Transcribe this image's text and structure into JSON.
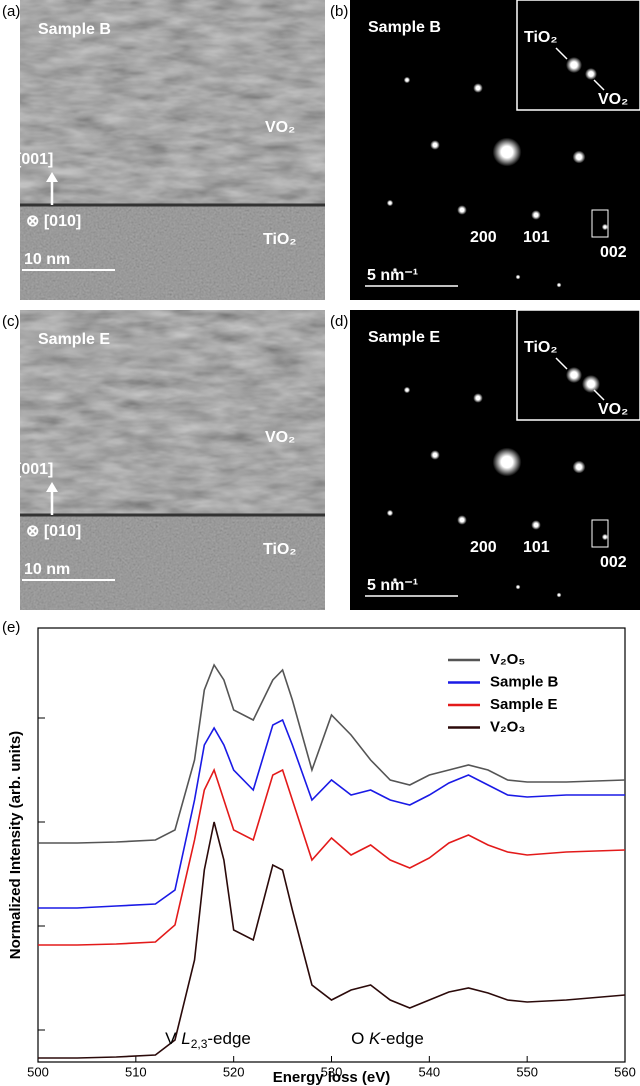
{
  "panels": [
    {
      "label": "(a)",
      "sample": "Sample B",
      "film": "VO₂",
      "direction": "[001]",
      "zone": "⊗ [010]",
      "substrate": "TiO₂",
      "scale": "10 nm"
    },
    {
      "label": "(b)",
      "sample": "Sample B",
      "inset": [
        "TiO₂",
        "VO₂"
      ],
      "spots": [
        "200",
        "101",
        "002"
      ],
      "scale": "5 nm⁻¹"
    },
    {
      "label": "(c)",
      "sample": "Sample E",
      "film": "VO₂",
      "direction": "[001]",
      "zone": "⊗ [010]",
      "substrate": "TiO₂",
      "scale": "10 nm"
    },
    {
      "label": "(d)",
      "sample": "Sample E",
      "inset": [
        "TiO₂",
        "VO₂"
      ],
      "spots": [
        "200",
        "101",
        "002"
      ],
      "scale": "5 nm⁻¹"
    }
  ],
  "chart_data": {
    "type": "line",
    "label": "(e)",
    "xlabel": "Energy loss (eV)",
    "ylabel": "Normalized Intensity (arb. units)",
    "x": [
      500,
      504,
      508,
      512,
      514,
      516,
      517,
      518,
      519,
      520,
      522,
      524,
      525,
      526,
      528,
      530,
      532,
      534,
      536,
      538,
      540,
      542,
      544,
      546,
      548,
      550,
      554,
      560
    ],
    "xlim": [
      500,
      560
    ],
    "xticks": [
      500,
      510,
      520,
      530,
      540,
      550,
      560
    ],
    "ylim": [
      0,
      434
    ],
    "yticks": [
      32,
      136,
      240,
      344
    ],
    "legend": "upper right",
    "series": [
      {
        "name": "V₂O₅",
        "color": "#555555",
        "values": [
          219,
          219,
          220,
          222,
          232,
          302,
          372,
          397,
          382,
          352,
          342,
          382,
          392,
          362,
          292,
          347,
          327,
          302,
          282,
          277,
          287,
          292,
          297,
          292,
          282,
          280,
          280,
          282
        ]
      },
      {
        "name": "Sample B",
        "color": "#1a1ae6",
        "values": [
          154,
          154,
          156,
          158,
          172,
          262,
          317,
          334,
          317,
          292,
          272,
          337,
          342,
          317,
          262,
          282,
          267,
          272,
          262,
          257,
          267,
          279,
          287,
          277,
          267,
          265,
          267,
          267
        ]
      },
      {
        "name": "Sample E",
        "color": "#e31a1a",
        "values": [
          117,
          117,
          118,
          120,
          137,
          222,
          272,
          292,
          262,
          232,
          222,
          287,
          292,
          262,
          202,
          224,
          207,
          217,
          202,
          194,
          204,
          219,
          227,
          217,
          210,
          207,
          210,
          212
        ]
      },
      {
        "name": "V₂O₃",
        "color": "#2b0a0a",
        "values": [
          4,
          4,
          5,
          7,
          22,
          102,
          192,
          240,
          202,
          132,
          122,
          197,
          192,
          152,
          77,
          62,
          72,
          77,
          62,
          54,
          62,
          70,
          74,
          69,
          62,
          60,
          62,
          67
        ]
      }
    ],
    "annotations": [
      {
        "x": 513,
        "parts": [
          "V ",
          "L",
          "2,3",
          "-edge"
        ]
      },
      {
        "x": 532,
        "parts": [
          "O ",
          "K",
          "-edge"
        ]
      }
    ]
  }
}
